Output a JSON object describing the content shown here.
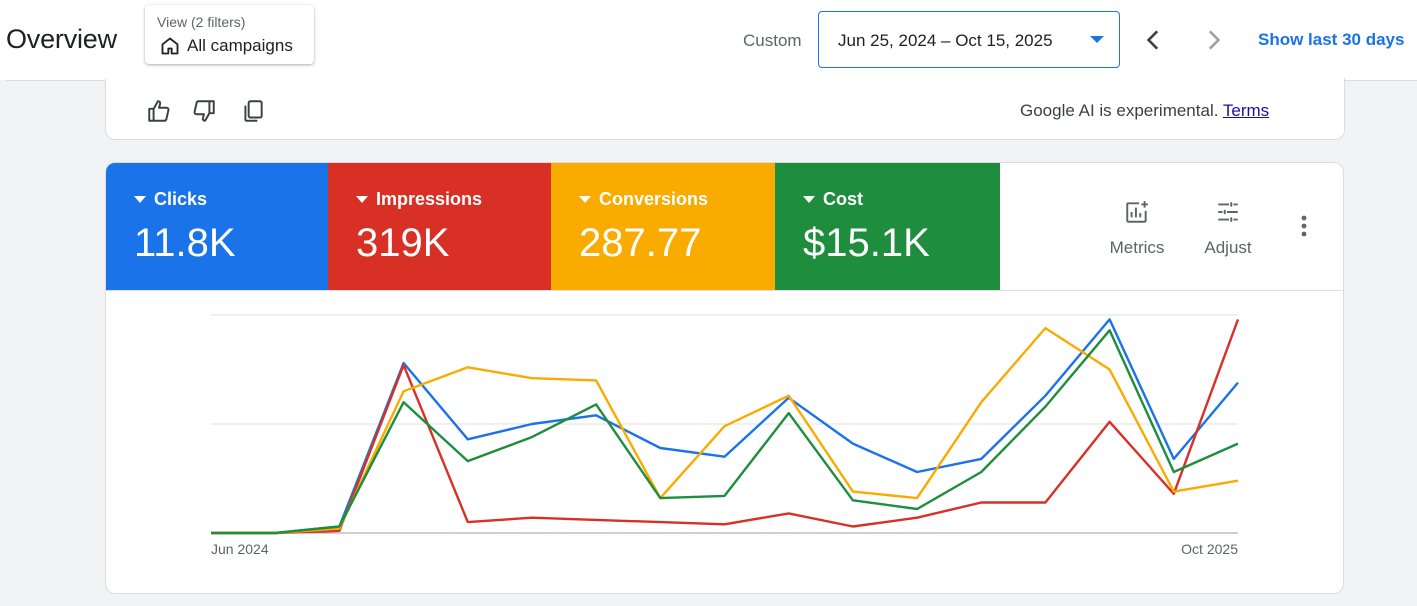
{
  "header": {
    "title": "Overview",
    "view_filter_sub": "View (2 filters)",
    "view_filter_main": "All campaigns",
    "custom_label": "Custom",
    "date_range": "Jun 25, 2024 – Oct 15, 2025",
    "show_last": "Show last 30 days"
  },
  "ai_card": {
    "note_prefix": "Google AI is experimental. ",
    "terms_link": "Terms"
  },
  "tiles": [
    {
      "label": "Clicks",
      "value": "11.8K",
      "color": "#1a73e8"
    },
    {
      "label": "Impressions",
      "value": "319K",
      "color": "#d93025"
    },
    {
      "label": "Conversions",
      "value": "287.77",
      "color": "#f9ab00"
    },
    {
      "label": "Cost",
      "value": "$15.1K",
      "color": "#1e8e3e"
    }
  ],
  "toolbar": {
    "metrics_label": "Metrics",
    "adjust_label": "Adjust"
  },
  "chart_data": {
    "type": "line",
    "x_start_label": "Jun 2024",
    "x_end_label": "Oct 2025",
    "ylim": [
      0,
      100
    ],
    "grid": true,
    "series": [
      {
        "name": "Clicks",
        "color": "#1a73e8",
        "values": [
          0,
          0,
          3,
          78,
          43,
          50,
          54,
          39,
          35,
          62,
          41,
          28,
          34,
          63,
          98,
          34,
          69
        ]
      },
      {
        "name": "Impressions",
        "color": "#d93025",
        "values": [
          0,
          0,
          1,
          77,
          5,
          7,
          6,
          5,
          4,
          9,
          3,
          7,
          14,
          14,
          51,
          18,
          98
        ]
      },
      {
        "name": "Conversions",
        "color": "#f9ab00",
        "values": [
          0,
          0,
          2,
          65,
          76,
          71,
          70,
          16,
          49,
          63,
          19,
          16,
          60,
          94,
          75,
          19,
          24
        ]
      },
      {
        "name": "Cost",
        "color": "#1e8e3e",
        "values": [
          0,
          0,
          3,
          60,
          33,
          44,
          59,
          16,
          17,
          55,
          15,
          11,
          28,
          58,
          93,
          28,
          41
        ]
      }
    ]
  }
}
